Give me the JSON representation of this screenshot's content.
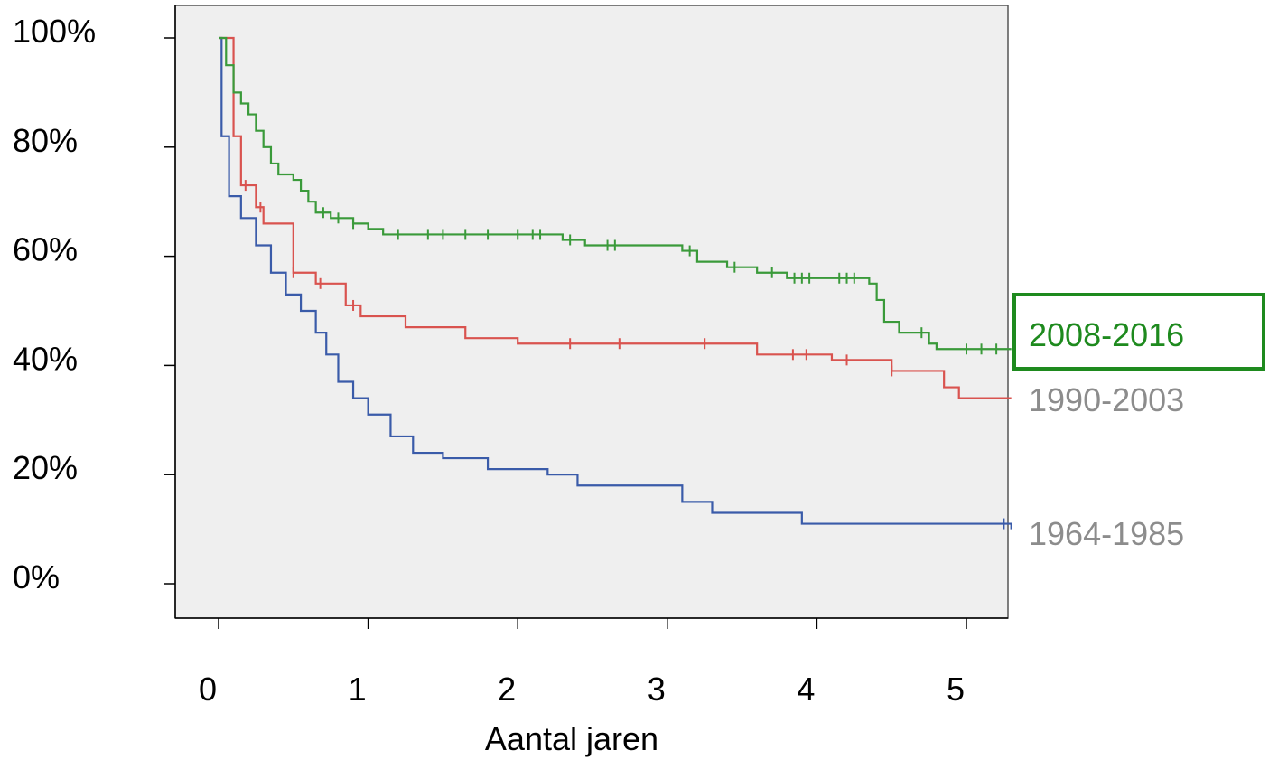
{
  "chart_data": {
    "type": "line",
    "subtype": "kaplan-meier-step",
    "title": "",
    "xlabel": "Aantal jaren",
    "ylabel": "",
    "xlim": [
      0,
      5.3
    ],
    "ylim": [
      -5,
      103
    ],
    "x_ticks": [
      0,
      1,
      2,
      3,
      4,
      5
    ],
    "x_tick_labels": [
      "0",
      "1",
      "2",
      "3",
      "4",
      "5"
    ],
    "y_ticks": [
      100,
      80,
      60,
      40,
      20,
      0
    ],
    "y_tick_labels": [
      "100%",
      "80%",
      "60%",
      "40%",
      "20%",
      "0%"
    ],
    "grid": false,
    "plot_background": "#efefef",
    "series": [
      {
        "name": "2008-2016",
        "color": "#3a9a3a",
        "highlighted": true,
        "box_color": "#1e8a1e",
        "points": [
          [
            0,
            100
          ],
          [
            0.05,
            95
          ],
          [
            0.1,
            90
          ],
          [
            0.15,
            88
          ],
          [
            0.2,
            86
          ],
          [
            0.25,
            83
          ],
          [
            0.3,
            80
          ],
          [
            0.35,
            77
          ],
          [
            0.4,
            75
          ],
          [
            0.5,
            74
          ],
          [
            0.55,
            72
          ],
          [
            0.6,
            70
          ],
          [
            0.65,
            68
          ],
          [
            0.75,
            67
          ],
          [
            0.9,
            66
          ],
          [
            1.0,
            65
          ],
          [
            1.1,
            64
          ],
          [
            2.3,
            63
          ],
          [
            2.45,
            62
          ],
          [
            3.1,
            61
          ],
          [
            3.2,
            59
          ],
          [
            3.4,
            58
          ],
          [
            3.6,
            57
          ],
          [
            3.8,
            56
          ],
          [
            4.35,
            55
          ],
          [
            4.4,
            52
          ],
          [
            4.45,
            48
          ],
          [
            4.55,
            46
          ],
          [
            4.75,
            44
          ],
          [
            4.8,
            43
          ],
          [
            5.3,
            43
          ]
        ],
        "censor_x": [
          0.7,
          0.8,
          0.9,
          1.2,
          1.4,
          1.5,
          1.65,
          1.8,
          2.0,
          2.1,
          2.15,
          2.35,
          2.6,
          2.65,
          3.15,
          3.45,
          3.7,
          3.85,
          3.9,
          3.95,
          4.15,
          4.2,
          4.25,
          4.7,
          5.0,
          5.1,
          5.2
        ]
      },
      {
        "name": "1990-2003",
        "color": "#d9534f",
        "highlighted": false,
        "points": [
          [
            0,
            100
          ],
          [
            0.08,
            100
          ],
          [
            0.1,
            82
          ],
          [
            0.15,
            73
          ],
          [
            0.25,
            69
          ],
          [
            0.3,
            66
          ],
          [
            0.5,
            57
          ],
          [
            0.65,
            55
          ],
          [
            0.85,
            51
          ],
          [
            0.95,
            49
          ],
          [
            1.25,
            47
          ],
          [
            1.65,
            45
          ],
          [
            2.0,
            44
          ],
          [
            3.6,
            42
          ],
          [
            3.9,
            42
          ],
          [
            4.1,
            41
          ],
          [
            4.5,
            39
          ],
          [
            4.85,
            36
          ],
          [
            4.95,
            34
          ],
          [
            5.3,
            34
          ]
        ],
        "censor_x": [
          0.18,
          0.28,
          0.5,
          0.68,
          0.9,
          2.35,
          2.68,
          3.25,
          3.84,
          3.93,
          4.2,
          4.5
        ]
      },
      {
        "name": "1964-1985",
        "color": "#3a5ba9",
        "highlighted": false,
        "points": [
          [
            0,
            100
          ],
          [
            0.02,
            82
          ],
          [
            0.07,
            71
          ],
          [
            0.15,
            67
          ],
          [
            0.25,
            62
          ],
          [
            0.35,
            57
          ],
          [
            0.45,
            53
          ],
          [
            0.55,
            50
          ],
          [
            0.65,
            46
          ],
          [
            0.72,
            42
          ],
          [
            0.8,
            37
          ],
          [
            0.9,
            34
          ],
          [
            1.0,
            31
          ],
          [
            1.15,
            27
          ],
          [
            1.3,
            24
          ],
          [
            1.5,
            23
          ],
          [
            1.8,
            21
          ],
          [
            2.2,
            20
          ],
          [
            2.4,
            18
          ],
          [
            3.1,
            15
          ],
          [
            3.3,
            13
          ],
          [
            3.9,
            11
          ],
          [
            5.3,
            10
          ]
        ],
        "censor_x": [
          5.25
        ]
      }
    ]
  }
}
